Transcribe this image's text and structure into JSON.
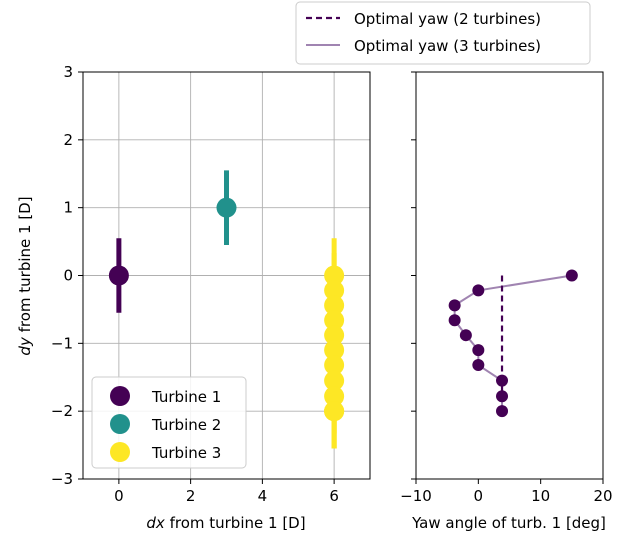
{
  "chart_data": [
    {
      "type": "scatter",
      "title": "",
      "xlabel_var": "dx",
      "xlabel_rest": " from turbine 1 [D]",
      "ylabel_var": "dy",
      "ylabel_rest": " from turbine 1 [D]",
      "xlim": [
        -1,
        7
      ],
      "ylim": [
        -3,
        3
      ],
      "xticks": [
        0,
        2,
        4,
        6
      ],
      "yticks": [
        -3,
        -2,
        -1,
        0,
        1,
        2,
        3
      ],
      "grid": true,
      "legend_placement": "lower-left",
      "series": [
        {
          "name": "Turbine 1",
          "color": "#440154",
          "x": [
            0
          ],
          "y": [
            0
          ],
          "bar_half_length": 0.55
        },
        {
          "name": "Turbine 2",
          "color": "#21918c",
          "x": [
            3
          ],
          "y": [
            1
          ],
          "bar_half_length": 0.55
        },
        {
          "name": "Turbine 3",
          "color": "#fde725",
          "x": [
            6,
            6,
            6,
            6,
            6,
            6,
            6,
            6,
            6,
            6,
            6,
            6
          ],
          "y": [
            0,
            -0.22,
            -0.44,
            -0.66,
            -0.88,
            -1.1,
            -1.32,
            -1.55,
            -1.78,
            -2.0,
            -2.0,
            -2.0
          ],
          "bar_half_length": 0.55
        }
      ]
    },
    {
      "type": "line",
      "xlabel": "Yaw angle of turb. 1 [deg]",
      "xlim": [
        -10,
        20
      ],
      "ylim": [
        -3,
        3
      ],
      "xticks": [
        -10,
        0,
        10,
        20
      ],
      "grid": false,
      "legend_placement": "top-outside",
      "series": [
        {
          "name": "Optimal yaw (2 turbines)",
          "color": "#440154",
          "style": "dashed",
          "x": [
            3.8,
            3.8
          ],
          "y": [
            0,
            -2.0
          ]
        },
        {
          "name": "Optimal yaw (3 turbines)",
          "color": "#a084b1",
          "style": "solid",
          "x": [
            15,
            0,
            -3.8,
            -3.8,
            -2,
            0,
            0,
            3.8,
            3.8,
            3.8
          ],
          "y": [
            0,
            -0.22,
            -0.44,
            -0.66,
            -0.88,
            -1.1,
            -1.32,
            -1.55,
            -1.78,
            -2.0
          ]
        }
      ],
      "points": {
        "color": "#440154",
        "x": [
          15,
          0,
          -3.8,
          -3.8,
          -2,
          0,
          0,
          3.8,
          3.8,
          3.8
        ],
        "y": [
          0,
          -0.22,
          -0.44,
          -0.66,
          -0.88,
          -1.1,
          -1.32,
          -1.55,
          -1.78,
          -2.0
        ]
      }
    }
  ]
}
